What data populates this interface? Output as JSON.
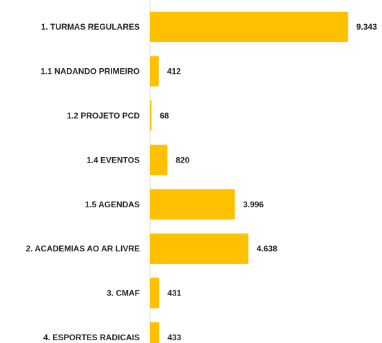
{
  "chart_data": {
    "type": "hbar",
    "categories": [
      "1. TURMAS REGULARES",
      "1.1 NADANDO PRIMEIRO",
      "1.2 PROJETO PCD",
      "1.4 EVENTOS",
      "1.5 AGENDAS",
      "2. ACADEMIAS AO AR LIVRE",
      "3. CMAF",
      "4. ESPORTES RADICAIS"
    ],
    "values": [
      9343,
      412,
      68,
      820,
      3996,
      4638,
      431,
      433
    ],
    "value_labels": [
      "9.343",
      "412",
      "68",
      "820",
      "3.996",
      "4.638",
      "431",
      "433"
    ],
    "color": "#FFC000",
    "xlim": [
      0,
      10000
    ]
  }
}
